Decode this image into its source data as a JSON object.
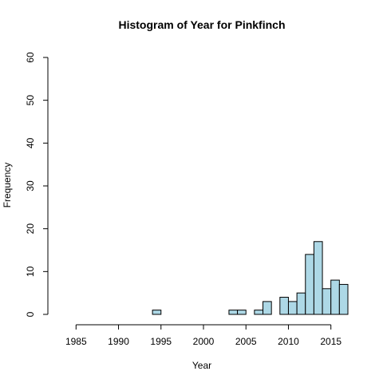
{
  "chart_data": {
    "type": "bar",
    "title": "Histogram of Year for Pinkfinch",
    "xlabel": "Year",
    "ylabel": "Frequency",
    "xlim": [
      1983,
      2017
    ],
    "ylim": [
      0,
      60
    ],
    "bin_width": 1,
    "x_ticks": [
      1985,
      1990,
      1995,
      2000,
      2005,
      2010,
      2015
    ],
    "y_ticks": [
      0,
      10,
      20,
      30,
      40,
      50,
      60
    ],
    "bar_color": "#add8e6",
    "grid": false,
    "bins": [
      {
        "start": 1983,
        "end": 1984,
        "count": 0
      },
      {
        "start": 1984,
        "end": 1985,
        "count": 0
      },
      {
        "start": 1985,
        "end": 1986,
        "count": 0
      },
      {
        "start": 1986,
        "end": 1987,
        "count": 0
      },
      {
        "start": 1987,
        "end": 1988,
        "count": 0
      },
      {
        "start": 1988,
        "end": 1989,
        "count": 0
      },
      {
        "start": 1989,
        "end": 1990,
        "count": 0
      },
      {
        "start": 1990,
        "end": 1991,
        "count": 0
      },
      {
        "start": 1991,
        "end": 1992,
        "count": 0
      },
      {
        "start": 1992,
        "end": 1993,
        "count": 0
      },
      {
        "start": 1993,
        "end": 1994,
        "count": 0
      },
      {
        "start": 1994,
        "end": 1995,
        "count": 1
      },
      {
        "start": 1995,
        "end": 1996,
        "count": 0
      },
      {
        "start": 1996,
        "end": 1997,
        "count": 0
      },
      {
        "start": 1997,
        "end": 1998,
        "count": 0
      },
      {
        "start": 1998,
        "end": 1999,
        "count": 0
      },
      {
        "start": 1999,
        "end": 2000,
        "count": 0
      },
      {
        "start": 2000,
        "end": 2001,
        "count": 0
      },
      {
        "start": 2001,
        "end": 2002,
        "count": 0
      },
      {
        "start": 2002,
        "end": 2003,
        "count": 0
      },
      {
        "start": 2003,
        "end": 2004,
        "count": 1
      },
      {
        "start": 2004,
        "end": 2005,
        "count": 1
      },
      {
        "start": 2005,
        "end": 2006,
        "count": 0
      },
      {
        "start": 2006,
        "end": 2007,
        "count": 1
      },
      {
        "start": 2007,
        "end": 2008,
        "count": 3
      },
      {
        "start": 2008,
        "end": 2009,
        "count": 0
      },
      {
        "start": 2009,
        "end": 2010,
        "count": 4
      },
      {
        "start": 2010,
        "end": 2011,
        "count": 3
      },
      {
        "start": 2011,
        "end": 2012,
        "count": 5
      },
      {
        "start": 2012,
        "end": 2013,
        "count": 14
      },
      {
        "start": 2013,
        "end": 2014,
        "count": 17
      },
      {
        "start": 2014,
        "end": 2015,
        "count": 6
      },
      {
        "start": 2015,
        "end": 2016,
        "count": 8
      },
      {
        "start": 2016,
        "end": 2017,
        "count": 7
      }
    ]
  }
}
